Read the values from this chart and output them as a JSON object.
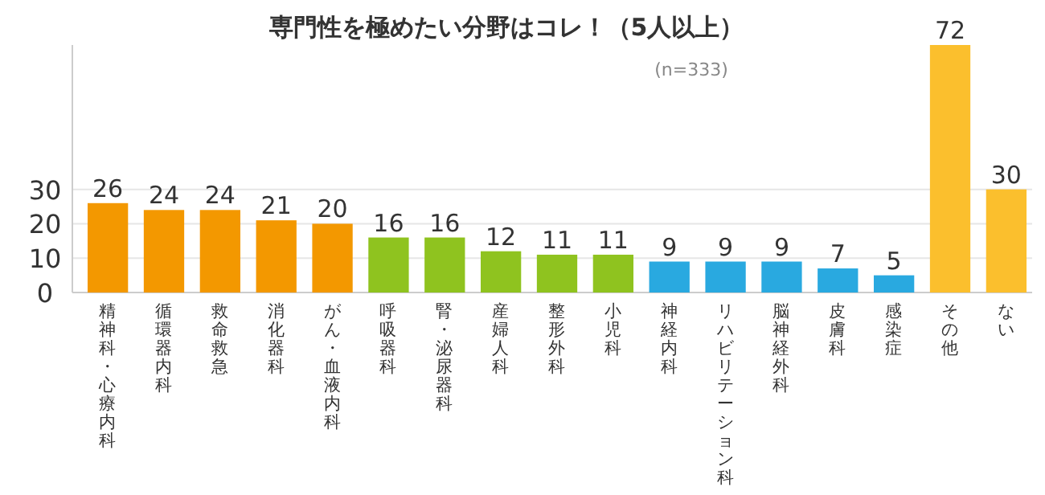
{
  "chart_data": {
    "type": "bar",
    "title": "専門性を極めたい分野はコレ！（5人以上）",
    "subtitle": "(n=333)",
    "categories": [
      "精神科・心療内科",
      "循環器内科",
      "救命救急",
      "消化器科",
      "がん・血液内科",
      "呼吸器科",
      "腎・泌尿器科",
      "産婦人科",
      "整形外科",
      "小児科",
      "神経内科",
      "リハビリテーション科",
      "脳神経外科",
      "皮膚科",
      "感染症",
      "その他",
      "ない"
    ],
    "values": [
      26,
      24,
      24,
      21,
      20,
      16,
      16,
      12,
      11,
      11,
      9,
      9,
      9,
      7,
      5,
      72,
      30
    ],
    "colors": [
      "#f39800",
      "#f39800",
      "#f39800",
      "#f39800",
      "#f39800",
      "#8fc31f",
      "#8fc31f",
      "#8fc31f",
      "#8fc31f",
      "#8fc31f",
      "#29a9e0",
      "#29a9e0",
      "#29a9e0",
      "#29a9e0",
      "#29a9e0",
      "#fbbf2d",
      "#fbbf2d"
    ],
    "ylim": [
      0,
      72
    ],
    "yticks": [
      0,
      10,
      20,
      30
    ],
    "grid": "y",
    "data_labels": true
  }
}
